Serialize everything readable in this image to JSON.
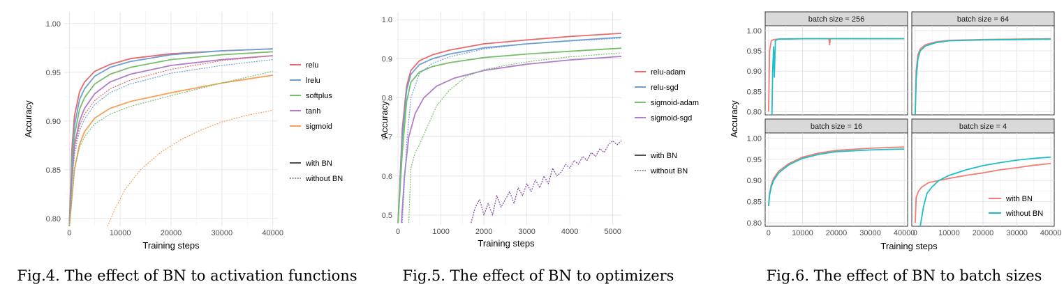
{
  "figures": [
    {
      "caption": "Fig.4. The effect of BN to activation functions"
    },
    {
      "caption": "Fig.5. The effect of BN to optimizers"
    },
    {
      "caption": "Fig.6. The effect of BN to batch sizes"
    }
  ],
  "colors": {
    "red": "#e8696b",
    "blue": "#6f9fd2",
    "green": "#78bd6c",
    "purple": "#b07cc8",
    "orange": "#f6a05a",
    "teal": "#1cbfc6",
    "salmon": "#f07c73",
    "darkline": "#505050"
  },
  "chart_data": [
    {
      "type": "line",
      "xlabel": "Training steps",
      "ylabel": "Accuracy",
      "xlim": [
        -1000,
        41000
      ],
      "ylim": [
        0.792,
        1.012
      ],
      "xticks": [
        "0",
        "10000",
        "20000",
        "30000",
        "40000"
      ],
      "yticks": [
        "0.80",
        "0.85",
        "0.90",
        "0.95",
        "1.00"
      ],
      "xtick_values": [
        0,
        10000,
        20000,
        30000,
        40000
      ],
      "ytick_values": [
        0.8,
        0.85,
        0.9,
        0.95,
        1.0
      ],
      "grid": true,
      "legend_position": "right",
      "legend_color": [
        "relu",
        "lrelu",
        "softplus",
        "tanh",
        "sigmoid"
      ],
      "legend_linetype": [
        "with BN",
        "without BN"
      ],
      "series": [
        {
          "name": "relu",
          "style": "with BN",
          "color": "#e8696b",
          "x": [
            0,
            500,
            1000,
            2000,
            3000,
            5000,
            8000,
            12000,
            20000,
            30000,
            40000
          ],
          "y": [
            0.79,
            0.87,
            0.905,
            0.93,
            0.94,
            0.951,
            0.958,
            0.964,
            0.969,
            0.972,
            0.974
          ]
        },
        {
          "name": "lrelu",
          "style": "with BN",
          "color": "#6f9fd2",
          "x": [
            0,
            500,
            1000,
            2000,
            3000,
            5000,
            8000,
            12000,
            20000,
            30000,
            40000
          ],
          "y": [
            0.79,
            0.86,
            0.895,
            0.922,
            0.933,
            0.946,
            0.955,
            0.961,
            0.968,
            0.972,
            0.974
          ]
        },
        {
          "name": "softplus",
          "style": "with BN",
          "color": "#78bd6c",
          "x": [
            0,
            500,
            1000,
            2000,
            3000,
            5000,
            8000,
            12000,
            20000,
            30000,
            40000
          ],
          "y": [
            0.79,
            0.85,
            0.885,
            0.912,
            0.924,
            0.938,
            0.948,
            0.955,
            0.963,
            0.968,
            0.971
          ]
        },
        {
          "name": "tanh",
          "style": "with BN",
          "color": "#b07cc8",
          "x": [
            0,
            500,
            1000,
            2000,
            3000,
            5000,
            8000,
            12000,
            20000,
            30000,
            40000
          ],
          "y": [
            0.79,
            0.84,
            0.875,
            0.9,
            0.913,
            0.928,
            0.94,
            0.948,
            0.957,
            0.963,
            0.967
          ]
        },
        {
          "name": "sigmoid",
          "style": "with BN",
          "color": "#f6a05a",
          "x": [
            0,
            500,
            1000,
            2000,
            3000,
            5000,
            8000,
            12000,
            20000,
            30000,
            40000
          ],
          "y": [
            0.79,
            0.82,
            0.85,
            0.876,
            0.889,
            0.903,
            0.913,
            0.92,
            0.929,
            0.939,
            0.947
          ]
        },
        {
          "name": "relu",
          "style": "without BN",
          "color": "#e8696b",
          "x": [
            0,
            500,
            1000,
            2000,
            3000,
            5000,
            8000,
            12000,
            20000,
            30000,
            40000
          ],
          "y": [
            0.79,
            0.84,
            0.87,
            0.895,
            0.907,
            0.921,
            0.933,
            0.942,
            0.953,
            0.962,
            0.967
          ]
        },
        {
          "name": "lrelu",
          "style": "without BN",
          "color": "#6f9fd2",
          "x": [
            0,
            500,
            1000,
            2000,
            3000,
            5000,
            8000,
            12000,
            20000,
            30000,
            40000
          ],
          "y": [
            0.79,
            0.835,
            0.865,
            0.89,
            0.902,
            0.917,
            0.929,
            0.938,
            0.949,
            0.957,
            0.963
          ]
        },
        {
          "name": "softplus",
          "style": "without BN",
          "color": "#78bd6c",
          "x": [
            0,
            500,
            1000,
            2000,
            3000,
            5000,
            8000,
            12000,
            20000,
            30000,
            40000
          ],
          "y": [
            0.79,
            0.82,
            0.85,
            0.873,
            0.884,
            0.897,
            0.907,
            0.915,
            0.926,
            0.939,
            0.951
          ]
        },
        {
          "name": "sigmoid",
          "style": "without BN",
          "color": "#f6a05a",
          "x": [
            7500,
            9000,
            11000,
            14000,
            18000,
            22000,
            26000,
            30000,
            35000,
            40000
          ],
          "y": [
            0.79,
            0.81,
            0.83,
            0.85,
            0.868,
            0.881,
            0.891,
            0.899,
            0.906,
            0.911
          ]
        }
      ]
    },
    {
      "type": "line",
      "xlabel": "Training steps",
      "ylabel": "Accuracy",
      "xlim": [
        -50,
        5200
      ],
      "ylim": [
        0.475,
        1.02
      ],
      "xticks": [
        "0",
        "1000",
        "2000",
        "3000",
        "4000",
        "5000"
      ],
      "yticks": [
        "0.5",
        "0.6",
        "0.7",
        "0.8",
        "0.9",
        "1.0"
      ],
      "xtick_values": [
        0,
        1000,
        2000,
        3000,
        4000,
        5000
      ],
      "ytick_values": [
        0.5,
        0.6,
        0.7,
        0.8,
        0.9,
        1.0
      ],
      "grid": true,
      "legend_position": "right",
      "legend_color": [
        "relu-adam",
        "relu-sgd",
        "sigmoid-adam",
        "sigmoid-sgd"
      ],
      "legend_linetype": [
        "with BN",
        "without BN"
      ],
      "series": [
        {
          "name": "relu-adam",
          "style": "with BN",
          "color": "#e8696b",
          "x": [
            0,
            100,
            200,
            300,
            500,
            800,
            1200,
            2000,
            3000,
            4000,
            5200
          ],
          "y": [
            0.48,
            0.72,
            0.83,
            0.87,
            0.895,
            0.91,
            0.922,
            0.938,
            0.948,
            0.957,
            0.965
          ]
        },
        {
          "name": "relu-sgd",
          "style": "with BN",
          "color": "#6f9fd2",
          "x": [
            0,
            100,
            200,
            300,
            500,
            800,
            1200,
            2000,
            3000,
            4000,
            5200
          ],
          "y": [
            0.48,
            0.7,
            0.82,
            0.86,
            0.885,
            0.9,
            0.912,
            0.928,
            0.938,
            0.946,
            0.955
          ]
        },
        {
          "name": "sigmoid-adam",
          "style": "with BN",
          "color": "#78bd6c",
          "x": [
            0,
            100,
            200,
            300,
            500,
            800,
            1200,
            2000,
            3000,
            4000,
            5200
          ],
          "y": [
            0.48,
            0.66,
            0.79,
            0.84,
            0.866,
            0.88,
            0.89,
            0.903,
            0.912,
            0.919,
            0.927
          ]
        },
        {
          "name": "sigmoid-sgd",
          "style": "with BN",
          "color": "#b07cc8",
          "x": [
            80,
            150,
            250,
            400,
            600,
            900,
            1300,
            2000,
            3000,
            4000,
            5200
          ],
          "y": [
            0.48,
            0.6,
            0.7,
            0.76,
            0.8,
            0.83,
            0.85,
            0.87,
            0.886,
            0.897,
            0.906
          ]
        },
        {
          "name": "relu-sgd",
          "style": "without BN",
          "color": "#6f9fd2",
          "x": [
            100,
            200,
            300,
            500,
            800,
            1200,
            2000,
            3000,
            4000,
            5200
          ],
          "y": [
            0.48,
            0.68,
            0.8,
            0.862,
            0.888,
            0.905,
            0.925,
            0.938,
            0.945,
            0.953
          ]
        },
        {
          "name": "sigmoid-adam",
          "style": "without BN",
          "color": "#78bd6c",
          "x": [
            250,
            300,
            400,
            500,
            700,
            900,
            1200,
            1600,
            2000,
            2600,
            3200,
            4000,
            5200
          ],
          "y": [
            0.48,
            0.62,
            0.66,
            0.68,
            0.73,
            0.78,
            0.82,
            0.855,
            0.872,
            0.885,
            0.895,
            0.905,
            0.915
          ]
        },
        {
          "name": "sigmoid-sgd",
          "style": "without BN",
          "color": "#7b3fa0",
          "x": [
            1700,
            1800,
            1900,
            2000,
            2100,
            2200,
            2300,
            2400,
            2500,
            2600,
            2700,
            2800,
            2900,
            3000,
            3100,
            3200,
            3300,
            3400,
            3500,
            3600,
            3700,
            3800,
            3900,
            4000,
            4100,
            4200,
            4300,
            4400,
            4500,
            4600,
            4700,
            4800,
            4900,
            5000,
            5100,
            5200
          ],
          "y": [
            0.48,
            0.52,
            0.54,
            0.5,
            0.53,
            0.5,
            0.55,
            0.52,
            0.54,
            0.56,
            0.53,
            0.57,
            0.55,
            0.58,
            0.56,
            0.59,
            0.57,
            0.6,
            0.58,
            0.62,
            0.6,
            0.61,
            0.63,
            0.62,
            0.64,
            0.63,
            0.65,
            0.64,
            0.66,
            0.65,
            0.67,
            0.66,
            0.68,
            0.69,
            0.68,
            0.69
          ]
        }
      ]
    },
    {
      "type": "line",
      "xlabel": "Training steps",
      "ylabel": "Accuracy",
      "xlim": [
        -1000,
        41000
      ],
      "ylim": [
        0.792,
        1.012
      ],
      "xticks": [
        "0",
        "10000",
        "20000",
        "30000",
        "40000"
      ],
      "yticks": [
        "0.80",
        "0.85",
        "0.90",
        "0.95",
        "1.00"
      ],
      "xtick_values": [
        0,
        10000,
        20000,
        30000,
        40000
      ],
      "ytick_values": [
        0.8,
        0.85,
        0.9,
        0.95,
        1.0
      ],
      "grid": true,
      "legend_position": "bottom-right",
      "legend": [
        "with BN",
        "without BN"
      ],
      "panels": [
        {
          "title": "batch size = 256",
          "series": [
            {
              "name": "with BN",
              "color": "#f07c73",
              "x": [
                0,
                300,
                800,
                1500,
                3000,
                10000,
                17800,
                18000,
                18200,
                25000,
                40000
              ],
              "y": [
                0.8,
                0.95,
                0.975,
                0.978,
                0.979,
                0.98,
                0.98,
                0.965,
                0.98,
                0.98,
                0.98
              ]
            },
            {
              "name": "without BN",
              "color": "#1cbfc6",
              "x": [
                1000,
                1200,
                1500,
                1700,
                2000,
                2500,
                3000,
                10000,
                20000,
                40000
              ],
              "y": [
                0.79,
                0.9,
                0.96,
                0.885,
                0.975,
                0.978,
                0.979,
                0.98,
                0.98,
                0.98
              ]
            }
          ]
        },
        {
          "title": "batch size = 64",
          "series": [
            {
              "name": "with BN",
              "color": "#f07c73",
              "x": [
                0,
                300,
                800,
                1500,
                3000,
                6000,
                10000,
                20000,
                30000,
                40000
              ],
              "y": [
                0.79,
                0.9,
                0.94,
                0.955,
                0.965,
                0.972,
                0.976,
                0.978,
                0.979,
                0.98
              ]
            },
            {
              "name": "without BN",
              "color": "#1cbfc6",
              "x": [
                0,
                300,
                800,
                1500,
                3000,
                6000,
                10000,
                20000,
                30000,
                40000
              ],
              "y": [
                0.79,
                0.88,
                0.93,
                0.95,
                0.962,
                0.97,
                0.975,
                0.977,
                0.978,
                0.979
              ]
            }
          ]
        },
        {
          "title": "batch size = 16",
          "series": [
            {
              "name": "with BN",
              "color": "#f07c73",
              "x": [
                0,
                300,
                800,
                1500,
                3000,
                6000,
                10000,
                15000,
                20000,
                30000,
                40000
              ],
              "y": [
                0.84,
                0.87,
                0.89,
                0.905,
                0.922,
                0.94,
                0.955,
                0.965,
                0.971,
                0.976,
                0.979
              ]
            },
            {
              "name": "without BN",
              "color": "#1cbfc6",
              "x": [
                0,
                300,
                800,
                1500,
                3000,
                6000,
                10000,
                15000,
                20000,
                30000,
                40000
              ],
              "y": [
                0.84,
                0.865,
                0.885,
                0.9,
                0.918,
                0.937,
                0.952,
                0.962,
                0.968,
                0.972,
                0.974
              ]
            }
          ]
        },
        {
          "title": "batch size = 4",
          "series": [
            {
              "name": "with BN",
              "color": "#f07c73",
              "x": [
                0,
                300,
                1000,
                2000,
                4000,
                7000,
                10000,
                15000,
                20000,
                25000,
                30000,
                35000,
                40000
              ],
              "y": [
                0.8,
                0.86,
                0.875,
                0.885,
                0.895,
                0.9,
                0.905,
                0.912,
                0.918,
                0.925,
                0.93,
                0.936,
                0.94
              ]
            },
            {
              "name": "without BN",
              "color": "#1cbfc6",
              "x": [
                1500,
                2500,
                3500,
                5000,
                7000,
                10000,
                15000,
                20000,
                25000,
                30000,
                35000,
                40000
              ],
              "y": [
                0.79,
                0.84,
                0.87,
                0.885,
                0.9,
                0.912,
                0.925,
                0.935,
                0.942,
                0.948,
                0.952,
                0.955
              ]
            }
          ]
        }
      ]
    }
  ]
}
